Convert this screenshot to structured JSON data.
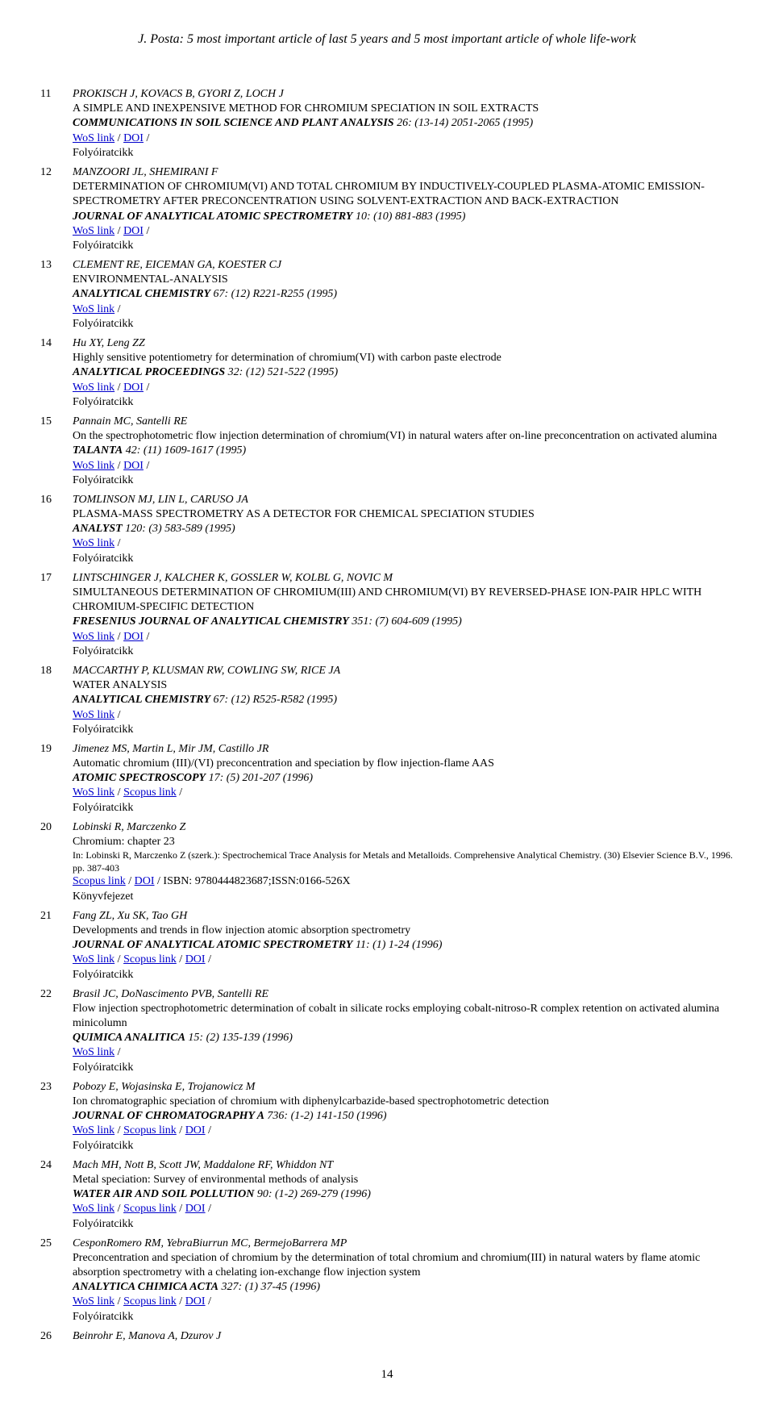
{
  "header": "J. Posta: 5 most important article of last 5 years and 5 most important article of whole life-work",
  "pageNumber": "14",
  "labels": {
    "wos": "WoS link",
    "doi": "DOI",
    "scopus": "Scopus link",
    "folyo": "Folyóiratcikk",
    "konyv": "Könyvfejezet"
  },
  "entries": [
    {
      "num": "11",
      "authors": "PROKISCH J, KOVACS B, GYORI Z, LOCH J",
      "title": "A SIMPLE AND INEXPENSIVE METHOD FOR CHROMIUM SPECIATION IN SOIL EXTRACTS",
      "journal": "COMMUNICATIONS IN SOIL SCIENCE AND PLANT ANALYSIS",
      "cite": " 26: (13-14) 2051-2065 (1995)",
      "links": [
        "wos",
        "doi"
      ],
      "type": "folyo"
    },
    {
      "num": "12",
      "authors": "MANZOORI JL, SHEMIRANI F",
      "title": "DETERMINATION OF CHROMIUM(VI) AND TOTAL CHROMIUM BY INDUCTIVELY-COUPLED PLASMA-ATOMIC EMISSION-SPECTROMETRY AFTER PRECONCENTRATION USING SOLVENT-EXTRACTION AND BACK-EXTRACTION",
      "journal": "JOURNAL OF ANALYTICAL ATOMIC SPECTROMETRY",
      "cite": " 10: (10) 881-883 (1995)",
      "links": [
        "wos",
        "doi"
      ],
      "type": "folyo"
    },
    {
      "num": "13",
      "authors": "CLEMENT RE, EICEMAN GA, KOESTER CJ",
      "title": "ENVIRONMENTAL-ANALYSIS",
      "journal": "ANALYTICAL CHEMISTRY",
      "cite": " 67: (12) R221-R255 (1995)",
      "links": [
        "wos"
      ],
      "type": "folyo"
    },
    {
      "num": "14",
      "authors": "Hu XY, Leng ZZ",
      "title": "Highly sensitive potentiometry for determination of chromium(VI) with carbon paste electrode",
      "journal": "ANALYTICAL PROCEEDINGS",
      "cite": " 32: (12) 521-522 (1995)",
      "links": [
        "wos",
        "doi"
      ],
      "type": "folyo"
    },
    {
      "num": "15",
      "authors": "Pannain MC, Santelli RE",
      "title": "On the spectrophotometric flow injection determination of chromium(VI) in natural waters after on-line preconcentration on activated alumina",
      "journal": "TALANTA",
      "cite": " 42: (11) 1609-1617 (1995)",
      "links": [
        "wos",
        "doi"
      ],
      "type": "folyo"
    },
    {
      "num": "16",
      "authors": "TOMLINSON MJ, LIN L, CARUSO JA",
      "title": "PLASMA-MASS SPECTROMETRY AS A DETECTOR FOR CHEMICAL SPECIATION STUDIES",
      "journal": "ANALYST",
      "cite": " 120: (3) 583-589 (1995)",
      "links": [
        "wos"
      ],
      "type": "folyo"
    },
    {
      "num": "17",
      "authors": "LINTSCHINGER J, KALCHER K, GOSSLER W, KOLBL G, NOVIC M",
      "title": "SIMULTANEOUS DETERMINATION OF CHROMIUM(III) AND CHROMIUM(VI) BY REVERSED-PHASE ION-PAIR HPLC WITH CHROMIUM-SPECIFIC DETECTION",
      "journal": "FRESENIUS JOURNAL OF ANALYTICAL CHEMISTRY",
      "cite": " 351: (7) 604-609 (1995)",
      "links": [
        "wos",
        "doi"
      ],
      "type": "folyo"
    },
    {
      "num": "18",
      "authors": "MACCARTHY P, KLUSMAN RW, COWLING SW, RICE JA",
      "title": "WATER ANALYSIS",
      "journal": "ANALYTICAL CHEMISTRY",
      "cite": " 67: (12) R525-R582 (1995)",
      "links": [
        "wos"
      ],
      "type": "folyo"
    },
    {
      "num": "19",
      "authors": "Jimenez MS, Martin L, Mir JM, Castillo JR",
      "title": "Automatic chromium (III)/(VI) preconcentration and speciation by flow injection-flame AAS",
      "journal": "ATOMIC SPECTROSCOPY",
      "cite": " 17: (5) 201-207 (1996)",
      "links": [
        "wos",
        "scopus"
      ],
      "type": "folyo"
    },
    {
      "num": "20",
      "authors": "Lobinski R, Marczenko Z",
      "title": "Chromium: chapter 23",
      "bookNote": "In: Lobinski R, Marczenko Z (szerk.): Spectrochemical Trace Analysis for Metals and Metalloids. Comprehensive Analytical Chemistry. (30) Elsevier Science B.V., 1996. pp. 387-403",
      "isbn": " / ISBN: 9780444823687;ISSN:0166-526X",
      "links": [
        "scopus",
        "doi"
      ],
      "type": "konyv"
    },
    {
      "num": "21",
      "authors": "Fang ZL, Xu SK, Tao GH",
      "title": "Developments and trends in flow injection atomic absorption spectrometry",
      "journal": "JOURNAL OF ANALYTICAL ATOMIC SPECTROMETRY",
      "cite": " 11: (1) 1-24 (1996)",
      "links": [
        "wos",
        "scopus",
        "doi"
      ],
      "type": "folyo"
    },
    {
      "num": "22",
      "authors": "Brasil JC, DoNascimento PVB, Santelli RE",
      "title": "Flow injection spectrophotometric determination of cobalt in silicate rocks employing cobalt-nitroso-R complex retention on activated alumina minicolumn",
      "journal": "QUIMICA ANALITICA",
      "cite": " 15: (2) 135-139 (1996)",
      "links": [
        "wos"
      ],
      "type": "folyo"
    },
    {
      "num": "23",
      "authors": "Pobozy E, Wojasinska E, Trojanowicz M",
      "title": "Ion chromatographic speciation of chromium with diphenylcarbazide-based spectrophotometric detection",
      "journal": "JOURNAL OF CHROMATOGRAPHY A",
      "cite": " 736: (1-2) 141-150 (1996)",
      "links": [
        "wos",
        "scopus",
        "doi"
      ],
      "type": "folyo"
    },
    {
      "num": "24",
      "authors": "Mach MH, Nott B, Scott JW, Maddalone RF, Whiddon NT",
      "title": "Metal speciation: Survey of environmental methods of analysis",
      "journal": "WATER AIR AND SOIL POLLUTION",
      "cite": " 90: (1-2) 269-279 (1996)",
      "links": [
        "wos",
        "scopus",
        "doi"
      ],
      "type": "folyo"
    },
    {
      "num": "25",
      "authors": "CesponRomero RM, YebraBiurrun MC, BermejoBarrera MP",
      "title": "Preconcentration and speciation of chromium by the determination of total chromium and chromium(III) in natural waters by flame atomic absorption spectrometry with a chelating ion-exchange flow injection system",
      "journal": "ANALYTICA CHIMICA ACTA",
      "cite": " 327: (1) 37-45 (1996)",
      "links": [
        "wos",
        "scopus",
        "doi"
      ],
      "type": "folyo"
    },
    {
      "num": "26",
      "authors": "Beinrohr E, Manova A, Dzurov J",
      "title": "",
      "journal": "",
      "cite": "",
      "links": [],
      "type": ""
    }
  ]
}
